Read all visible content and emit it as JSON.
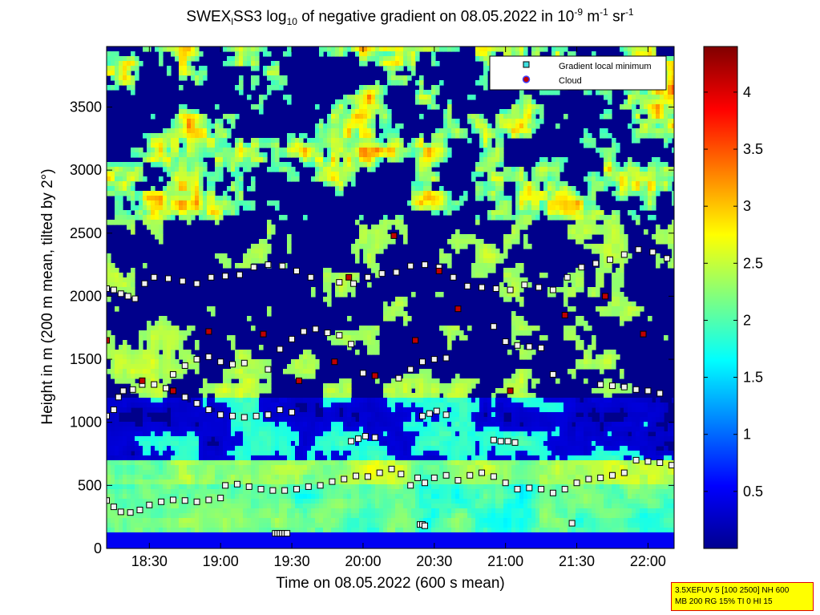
{
  "title": {
    "part1": "SWEX",
    "sub1": "l",
    "part2": "SS3 log",
    "sub2": "10",
    "part3": " of negative gradient on 08.05.2022 in 10",
    "sup1": "-9",
    "part4": " m",
    "sup2": "-1",
    "part5": " sr",
    "sup3": "-1"
  },
  "xlabel": "Time on 08.05.2022 (600 s mean)",
  "ylabel": "Height in m (200 m mean, tilted by 2°)",
  "legend": {
    "entries": [
      {
        "label": "Gradient local minimum",
        "marker": "square",
        "color": "#40e0e0"
      },
      {
        "label": "Cloud",
        "marker": "circle",
        "color": "#c00000",
        "edge": "#4040ff"
      }
    ]
  },
  "info_box": {
    "line1": "3.5XEFUV 5 [100 2500] NH 600",
    "line2": "MB 200 RG 15% TI 0 HI 15"
  },
  "colors": {
    "background_low": "#00008f",
    "info_box_bg": "#ffff00",
    "info_box_border": "#e00000"
  },
  "chart_data": {
    "type": "heatmap",
    "colormap": "jet",
    "x_ticks": [
      "18:30",
      "19:00",
      "19:30",
      "20:00",
      "20:30",
      "21:00",
      "21:30",
      "22:00"
    ],
    "x_tick_minutes": [
      1110,
      1140,
      1170,
      1200,
      1230,
      1260,
      1290,
      1320
    ],
    "xlim_minutes": [
      1092,
      1331
    ],
    "y_ticks": [
      0,
      500,
      1000,
      1500,
      2000,
      2500,
      3000,
      3500
    ],
    "ylim": [
      0,
      3980
    ],
    "colorbar_ticks": [
      "0.5",
      "1",
      "1.5",
      "2",
      "2.5",
      "3",
      "3.5",
      "4"
    ],
    "colorbar_values": [
      0.5,
      1,
      1.5,
      2,
      2.5,
      3,
      3.5,
      4
    ],
    "colorbar_range": [
      0,
      4.4
    ],
    "series": [
      {
        "name": "Gradient local minimum",
        "layer": "lower",
        "x": [
          1092,
          1095,
          1098,
          1102,
          1106,
          1110,
          1115,
          1120,
          1125,
          1130,
          1135,
          1140,
          1142,
          1147,
          1152,
          1157,
          1162,
          1167,
          1172,
          1177,
          1182,
          1187,
          1192,
          1197,
          1202,
          1207,
          1212,
          1216,
          1220,
          1223,
          1226,
          1230,
          1235,
          1240,
          1245,
          1250,
          1255,
          1260,
          1265,
          1270,
          1275,
          1280,
          1285,
          1290,
          1295,
          1300,
          1305,
          1310,
          1315,
          1320,
          1325,
          1330
        ],
        "y": [
          380,
          330,
          290,
          285,
          305,
          345,
          370,
          385,
          380,
          370,
          385,
          400,
          500,
          510,
          490,
          470,
          460,
          460,
          470,
          490,
          500,
          530,
          550,
          575,
          570,
          600,
          630,
          590,
          500,
          560,
          520,
          560,
          580,
          540,
          580,
          600,
          570,
          520,
          470,
          480,
          470,
          440,
          470,
          520,
          550,
          560,
          580,
          600,
          700,
          690,
          680,
          660
        ]
      },
      {
        "name": "Gradient local minimum",
        "layer": "base",
        "x": [
          1163,
          1164,
          1165,
          1166,
          1167,
          1168,
          1224,
          1225,
          1226,
          1288
        ],
        "y": [
          120,
          120,
          120,
          120,
          120,
          120,
          190,
          190,
          180,
          200
        ]
      },
      {
        "name": "Gradient local minimum",
        "layer": "1000m",
        "x": [
          1092,
          1095,
          1097,
          1099,
          1103,
          1107,
          1112,
          1117,
          1120,
          1125,
          1130,
          1135,
          1140,
          1145,
          1150,
          1155,
          1160,
          1165,
          1170,
          1195,
          1198,
          1201,
          1205,
          1225,
          1228,
          1231,
          1235,
          1255,
          1258,
          1261,
          1264
        ],
        "y": [
          1050,
          1100,
          1200,
          1250,
          1260,
          1300,
          1300,
          1270,
          1250,
          1200,
          1150,
          1100,
          1060,
          1050,
          1040,
          1050,
          1060,
          1100,
          1080,
          850,
          870,
          890,
          880,
          1050,
          1070,
          1090,
          1060,
          860,
          850,
          850,
          840
        ]
      },
      {
        "name": "Gradient local minimum",
        "layer": "1500m",
        "x": [
          1120,
          1125,
          1130,
          1135,
          1140,
          1145,
          1150,
          1160,
          1165,
          1170,
          1175,
          1180,
          1185,
          1190,
          1195,
          1200,
          1205,
          1215,
          1220,
          1225,
          1230,
          1235,
          1255,
          1260,
          1265,
          1270,
          1275,
          1280,
          1300,
          1305,
          1310,
          1315,
          1320,
          1325
        ],
        "y": [
          1380,
          1450,
          1500,
          1520,
          1480,
          1460,
          1470,
          1420,
          1580,
          1660,
          1720,
          1740,
          1710,
          1690,
          1620,
          1390,
          1370,
          1350,
          1420,
          1480,
          1500,
          1510,
          1760,
          1640,
          1610,
          1600,
          1590,
          1380,
          1300,
          1290,
          1280,
          1260,
          1250,
          1230
        ]
      },
      {
        "name": "Gradient local minimum",
        "layer": "2000m",
        "x": [
          1092,
          1095,
          1098,
          1101,
          1104,
          1108,
          1112,
          1118,
          1124,
          1130,
          1136,
          1142,
          1148,
          1154,
          1160,
          1166,
          1172,
          1178,
          1190,
          1196,
          1202,
          1208,
          1214,
          1220,
          1226,
          1232,
          1238,
          1244,
          1250,
          1256,
          1262,
          1268,
          1274,
          1280,
          1286,
          1292,
          1298,
          1304,
          1310,
          1316,
          1322,
          1328
        ],
        "y": [
          2060,
          2050,
          2020,
          2000,
          1980,
          2100,
          2150,
          2140,
          2120,
          2100,
          2150,
          2160,
          2170,
          2230,
          2250,
          2240,
          2200,
          2150,
          2110,
          2100,
          2150,
          2180,
          2190,
          2240,
          2250,
          2230,
          2150,
          2080,
          2070,
          2060,
          2050,
          2090,
          2070,
          2050,
          2150,
          2230,
          2260,
          2290,
          2330,
          2370,
          2350,
          2300
        ]
      },
      {
        "name": "Cloud",
        "layer": "scattered",
        "x": [
          1092,
          1107,
          1120,
          1135,
          1158,
          1173,
          1188,
          1194,
          1205,
          1213,
          1222,
          1232,
          1240,
          1262,
          1285,
          1302,
          1318
        ],
        "y": [
          1650,
          1330,
          1250,
          1720,
          1700,
          1330,
          1480,
          2150,
          1370,
          2480,
          1650,
          2200,
          1900,
          1250,
          1850,
          2000,
          1700
        ]
      }
    ]
  }
}
